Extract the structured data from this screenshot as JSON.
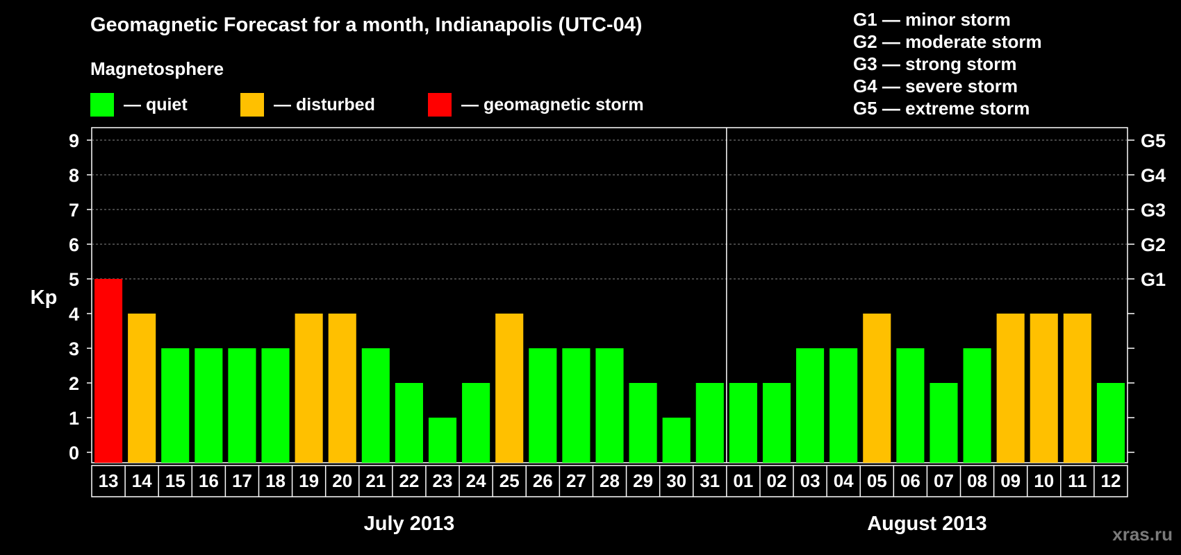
{
  "chart_data": {
    "type": "bar",
    "title": "Geomagnetic Forecast for a month, Indianapolis (UTC-04)",
    "ylabel": "Kp",
    "ylim": [
      0,
      9
    ],
    "yticks": [
      "0",
      "1",
      "2",
      "3",
      "4",
      "5",
      "6",
      "7",
      "8",
      "9"
    ],
    "right_axis_labels": [
      {
        "kp": 5,
        "label": "G1"
      },
      {
        "kp": 6,
        "label": "G2"
      },
      {
        "kp": 7,
        "label": "G3"
      },
      {
        "kp": 8,
        "label": "G4"
      },
      {
        "kp": 9,
        "label": "G5"
      }
    ],
    "grid": "horizontal dashed at Kp 5-9",
    "categories": [
      "13",
      "14",
      "15",
      "16",
      "17",
      "18",
      "19",
      "20",
      "21",
      "22",
      "23",
      "24",
      "25",
      "26",
      "27",
      "28",
      "29",
      "30",
      "31",
      "01",
      "02",
      "03",
      "04",
      "05",
      "06",
      "07",
      "08",
      "09",
      "10",
      "11",
      "12"
    ],
    "values": [
      5,
      4,
      3,
      3,
      3,
      3,
      4,
      4,
      3,
      2,
      1,
      2,
      4,
      3,
      3,
      3,
      2,
      1,
      2,
      2,
      2,
      3,
      3,
      4,
      3,
      2,
      3,
      4,
      4,
      4,
      2
    ],
    "month_groups": [
      {
        "label": "July 2013",
        "count": 19
      },
      {
        "label": "August 2013",
        "count": 12
      }
    ],
    "colors": {
      "quiet": "#00ff00",
      "disturbed": "#ffc000",
      "storm": "#ff0000"
    }
  },
  "legend": {
    "heading": "Magnetosphere",
    "items": [
      {
        "label": "— quiet",
        "color": "#00ff00"
      },
      {
        "label": "— disturbed",
        "color": "#ffc000"
      },
      {
        "label": "— geomagnetic storm",
        "color": "#ff0000"
      }
    ]
  },
  "storm_levels": [
    "G1 — minor storm",
    "G2 — moderate storm",
    "G3 — strong storm",
    "G4 — severe storm",
    "G5 — extreme storm"
  ],
  "watermark": "xras.ru"
}
